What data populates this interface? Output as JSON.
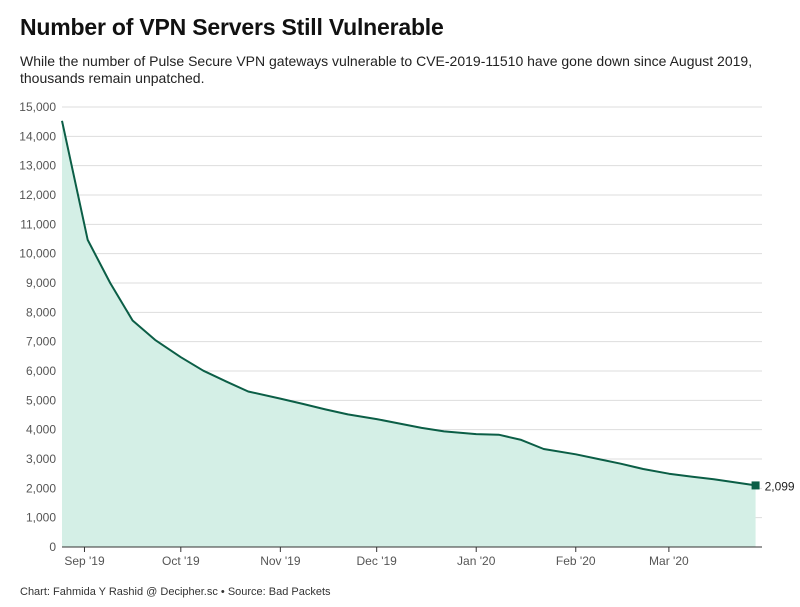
{
  "chart_data": {
    "type": "area",
    "title": "Number of VPN Servers Still Vulnerable",
    "subtitle": "While the number of Pulse Secure VPN gateways vulnerable to CVE-2019-11510 have gone down since August 2019, thousands remain unpatched.",
    "xlabel": "",
    "ylabel": "",
    "ylim": [
      0,
      15000
    ],
    "yticks": [
      0,
      1000,
      2000,
      3000,
      4000,
      5000,
      6000,
      7000,
      8000,
      9000,
      10000,
      11000,
      12000,
      13000,
      14000,
      15000
    ],
    "ytick_labels": [
      "0",
      "1,000",
      "2,000",
      "3,000",
      "4,000",
      "5,000",
      "6,000",
      "7,000",
      "8,000",
      "9,000",
      "10,000",
      "11,000",
      "12,000",
      "13,000",
      "14,000",
      "15,000"
    ],
    "xlim": [
      "2019-08-25",
      "2020-03-30"
    ],
    "xticks": [
      {
        "date": "2019-09-01",
        "label": "Sep '19"
      },
      {
        "date": "2019-10-01",
        "label": "Oct '19"
      },
      {
        "date": "2019-11-01",
        "label": "Nov '19"
      },
      {
        "date": "2019-12-01",
        "label": "Dec '19"
      },
      {
        "date": "2020-01-01",
        "label": "Jan '20"
      },
      {
        "date": "2020-02-01",
        "label": "Feb '20"
      },
      {
        "date": "2020-03-01",
        "label": "Mar '20"
      }
    ],
    "grid": true,
    "legend": "none",
    "colors": {
      "line": "#0b5e46",
      "fill": "#d4efe6",
      "grid": "#dddddd",
      "axis": "#333333"
    },
    "series": [
      {
        "x": [
          "2019-08-25",
          "2019-09-02",
          "2019-09-09",
          "2019-09-16",
          "2019-09-23",
          "2019-10-01",
          "2019-10-08",
          "2019-10-15",
          "2019-10-22",
          "2019-11-01",
          "2019-11-08",
          "2019-11-15",
          "2019-11-22",
          "2019-12-01",
          "2019-12-08",
          "2019-12-15",
          "2019-12-22",
          "2020-01-01",
          "2020-01-08",
          "2020-01-15",
          "2020-01-22",
          "2020-02-01",
          "2020-02-08",
          "2020-02-15",
          "2020-02-22",
          "2020-03-01",
          "2020-03-08",
          "2020-03-15",
          "2020-03-28"
        ],
        "y": [
          14530,
          10470,
          9000,
          7720,
          7060,
          6470,
          6010,
          5650,
          5300,
          5060,
          4880,
          4690,
          4520,
          4360,
          4210,
          4060,
          3940,
          3850,
          3830,
          3650,
          3340,
          3160,
          3000,
          2840,
          2660,
          2500,
          2400,
          2310,
          2099
        ]
      }
    ],
    "annotations": [
      {
        "date": "2020-03-28",
        "value": 2099,
        "label": "2,099"
      }
    ]
  },
  "footer": "Chart: Fahmida Y Rashid @ Decipher.sc • Source: Bad Packets"
}
